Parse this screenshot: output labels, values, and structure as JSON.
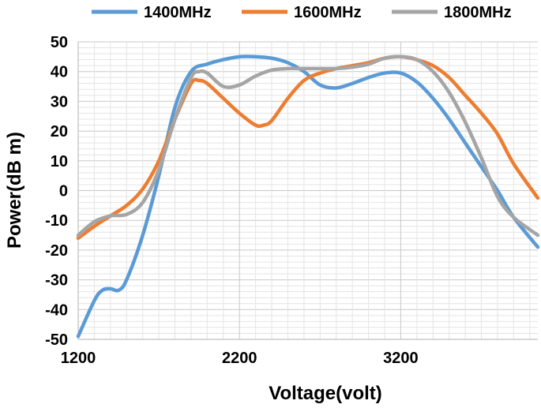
{
  "chart_data": {
    "type": "line",
    "xlabel": "Voltage(volt)",
    "ylabel": "Power(dB m)",
    "xlim": [
      1200,
      4050
    ],
    "ylim": [
      -50,
      50
    ],
    "x_ticks": [
      1200,
      2200,
      3200
    ],
    "y_ticks": [
      -50,
      -40,
      -30,
      -20,
      -10,
      0,
      10,
      20,
      30,
      40,
      50
    ],
    "grid": true,
    "legend_position": "top",
    "series": [
      {
        "name": "1400MHz",
        "color": "#5b9bd5",
        "points": [
          [
            1200,
            -49
          ],
          [
            1300,
            -37
          ],
          [
            1350,
            -33.5
          ],
          [
            1400,
            -33
          ],
          [
            1450,
            -33.5
          ],
          [
            1500,
            -30
          ],
          [
            1600,
            -15
          ],
          [
            1700,
            5
          ],
          [
            1800,
            28
          ],
          [
            1900,
            40
          ],
          [
            2000,
            42.5
          ],
          [
            2100,
            44
          ],
          [
            2200,
            45
          ],
          [
            2300,
            45
          ],
          [
            2400,
            44.5
          ],
          [
            2500,
            43
          ],
          [
            2600,
            40
          ],
          [
            2700,
            35.5
          ],
          [
            2800,
            34.5
          ],
          [
            2900,
            36
          ],
          [
            3000,
            38
          ],
          [
            3100,
            39.5
          ],
          [
            3200,
            39.5
          ],
          [
            3300,
            36.5
          ],
          [
            3400,
            31
          ],
          [
            3500,
            24
          ],
          [
            3600,
            16
          ],
          [
            3700,
            8
          ],
          [
            3800,
            0
          ],
          [
            3900,
            -9
          ],
          [
            4050,
            -19
          ]
        ]
      },
      {
        "name": "1600MHz",
        "color": "#ed7d31",
        "points": [
          [
            1200,
            -16
          ],
          [
            1300,
            -12
          ],
          [
            1400,
            -8.5
          ],
          [
            1500,
            -5
          ],
          [
            1600,
            0.5
          ],
          [
            1700,
            10
          ],
          [
            1800,
            24
          ],
          [
            1900,
            36
          ],
          [
            1950,
            37
          ],
          [
            2000,
            36
          ],
          [
            2100,
            31
          ],
          [
            2200,
            26
          ],
          [
            2300,
            22
          ],
          [
            2350,
            22
          ],
          [
            2400,
            23.5
          ],
          [
            2500,
            31
          ],
          [
            2600,
            37
          ],
          [
            2700,
            39.5
          ],
          [
            2800,
            41
          ],
          [
            2900,
            42
          ],
          [
            3000,
            43
          ],
          [
            3100,
            44.5
          ],
          [
            3200,
            45
          ],
          [
            3300,
            44
          ],
          [
            3400,
            42
          ],
          [
            3500,
            38
          ],
          [
            3600,
            32
          ],
          [
            3700,
            26
          ],
          [
            3800,
            19
          ],
          [
            3900,
            9
          ],
          [
            4050,
            -2.5
          ]
        ]
      },
      {
        "name": "1800MHz",
        "color": "#a5a5a5",
        "points": [
          [
            1200,
            -15
          ],
          [
            1300,
            -10.5
          ],
          [
            1400,
            -8.5
          ],
          [
            1500,
            -8
          ],
          [
            1600,
            -4
          ],
          [
            1700,
            7
          ],
          [
            1800,
            24
          ],
          [
            1900,
            38
          ],
          [
            1950,
            40
          ],
          [
            2000,
            39.5
          ],
          [
            2100,
            35
          ],
          [
            2200,
            35.5
          ],
          [
            2300,
            38.5
          ],
          [
            2400,
            40.5
          ],
          [
            2500,
            41
          ],
          [
            2600,
            41
          ],
          [
            2700,
            41
          ],
          [
            2800,
            41
          ],
          [
            2900,
            41.5
          ],
          [
            3000,
            42.5
          ],
          [
            3100,
            44.5
          ],
          [
            3200,
            45
          ],
          [
            3300,
            44
          ],
          [
            3400,
            40
          ],
          [
            3500,
            33
          ],
          [
            3600,
            23
          ],
          [
            3700,
            11
          ],
          [
            3800,
            -2
          ],
          [
            3900,
            -9
          ],
          [
            4050,
            -15
          ]
        ]
      }
    ]
  }
}
